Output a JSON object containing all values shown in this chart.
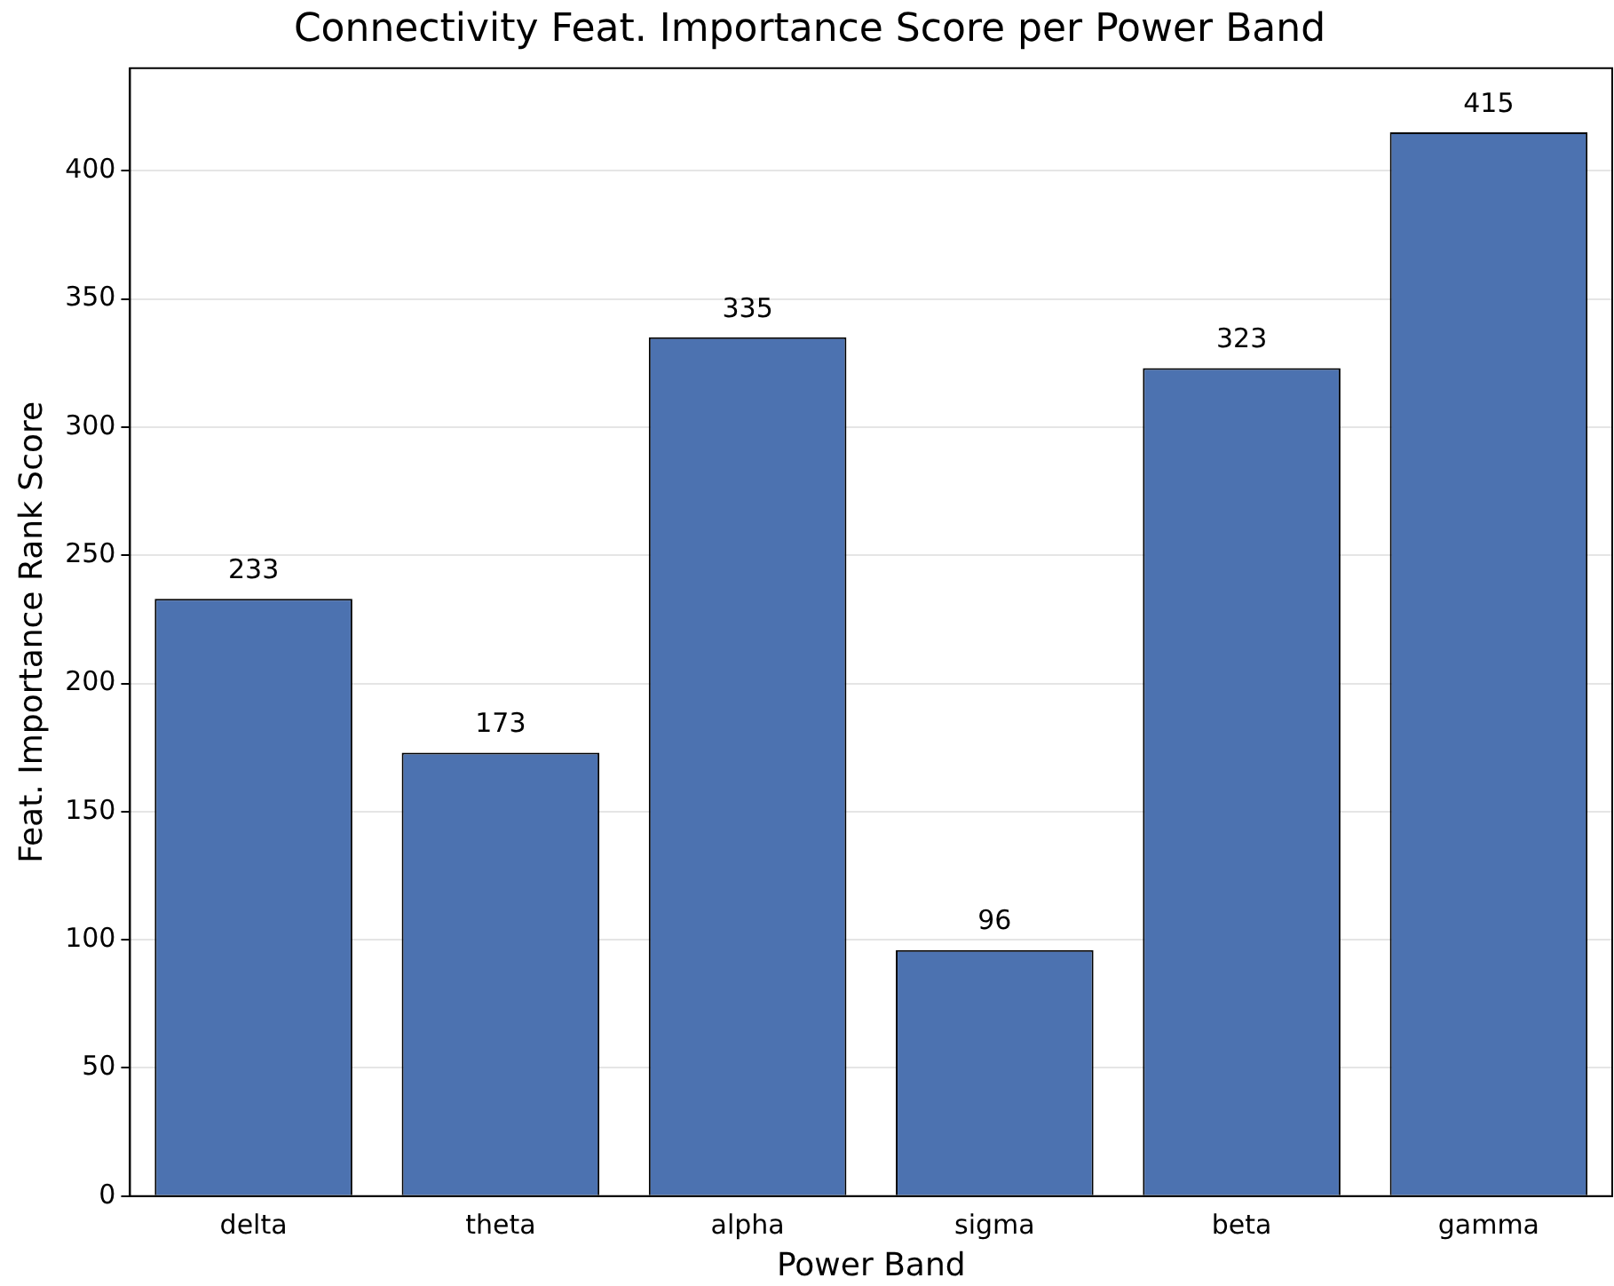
{
  "chart_data": {
    "type": "bar",
    "title": "Connectivity Feat. Importance Score per Power Band",
    "xlabel": "Power Band",
    "ylabel": "Feat. Importance Rank Score",
    "categories": [
      "delta",
      "theta",
      "alpha",
      "sigma",
      "beta",
      "gamma"
    ],
    "values": [
      233,
      173,
      335,
      96,
      323,
      415
    ],
    "color": "#4c72b0",
    "ylim": [
      0,
      440
    ],
    "yticks": [
      0,
      50,
      100,
      150,
      200,
      250,
      300,
      350,
      400
    ],
    "grid": "y",
    "data_labels": true
  }
}
